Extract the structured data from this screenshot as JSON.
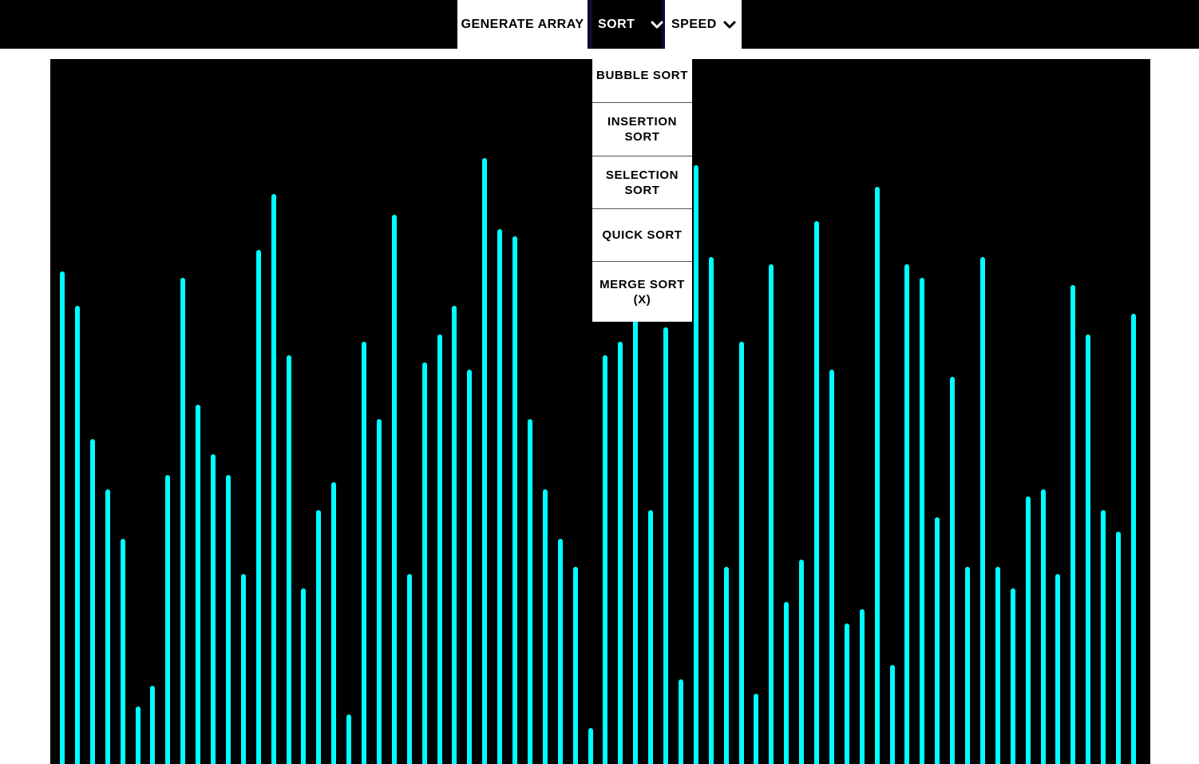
{
  "navbar": {
    "generate_label": "GENERATE ARRAY",
    "sort_label": "SORT",
    "speed_label": "SPEED"
  },
  "sort_menu": {
    "items": [
      {
        "label": "BUBBLE SORT"
      },
      {
        "label": "INSERTION SORT"
      },
      {
        "label": "SELECTION SORT"
      },
      {
        "label": "QUICK SORT"
      },
      {
        "label": "MERGE SORT (X)"
      }
    ]
  },
  "colors": {
    "bar": "#00ffff",
    "canvas": "#000000",
    "navbar": "#000000"
  },
  "icons": {
    "sort_chevron": "chevron-down-icon",
    "speed_chevron": "chevron-down-icon"
  },
  "array": {
    "max_value": 883,
    "values": [
      617,
      574,
      407,
      344,
      282,
      72,
      98,
      362,
      609,
      450,
      388,
      362,
      238,
      644,
      714,
      512,
      220,
      318,
      353,
      62,
      529,
      432,
      688,
      238,
      503,
      538,
      574,
      494,
      759,
      670,
      661,
      432,
      344,
      282,
      247,
      45,
      512,
      529,
      556,
      318,
      547,
      106,
      750,
      635,
      247,
      529,
      88,
      626,
      203,
      256,
      680,
      494,
      176,
      194,
      723,
      124,
      626,
      609,
      309,
      485,
      247,
      635,
      247,
      220,
      335,
      344,
      238,
      600,
      538,
      318,
      291,
      564
    ]
  }
}
